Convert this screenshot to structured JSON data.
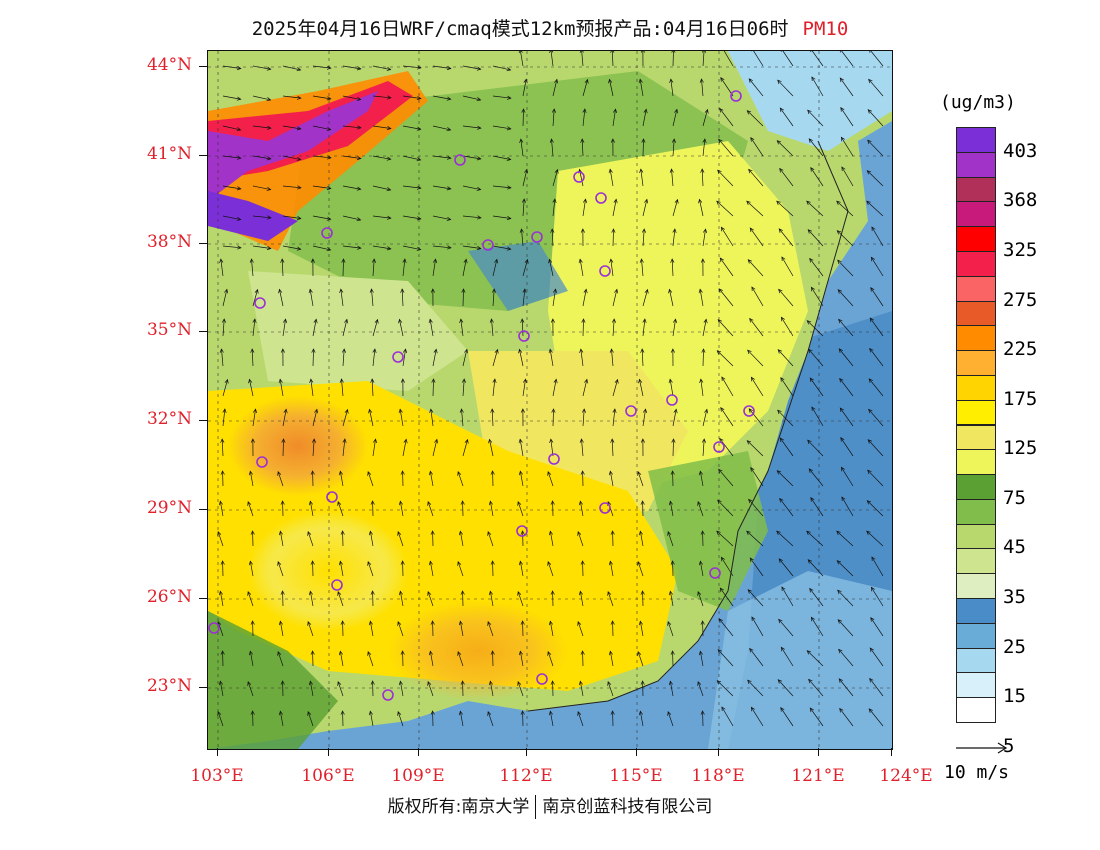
{
  "title": {
    "text": "2025年04月16日WRF/cmaq模式12km预报产品:04月16日06时",
    "pollutant": "PM10"
  },
  "map": {
    "lat_labels": [
      "44°N",
      "41°N",
      "38°N",
      "35°N",
      "32°N",
      "29°N",
      "26°N",
      "23°N"
    ],
    "lon_labels": [
      "103°E",
      "106°E",
      "109°E",
      "112°E",
      "115°E",
      "118°E",
      "121°E",
      "124°E"
    ],
    "label_color": "#e0202a",
    "site_marker_color": "#9b2fd6"
  },
  "colorbar": {
    "unit": "(ug/m3)",
    "labels": [
      "403",
      "368",
      "325",
      "275",
      "225",
      "175",
      "125",
      "75",
      "45",
      "35",
      "25",
      "15",
      "5"
    ],
    "colors": [
      "#7b2fd6",
      "#a233c8",
      "#b0305a",
      "#c81a7a",
      "#ff0000",
      "#f2204a",
      "#fa6464",
      "#e85a28",
      "#ff8c00",
      "#ffb030",
      "#ffd400",
      "#ffee00",
      "#f0e660",
      "#eef55a",
      "#5aa032",
      "#80bd4a",
      "#b8d86e",
      "#cfe48e",
      "#dfeec0",
      "#4a8cc8",
      "#6aacd8",
      "#a6d8f0",
      "#d8f0fa",
      "#ffffff"
    ]
  },
  "wind_reference": {
    "label": "10 m/s"
  },
  "footer": {
    "left": "版权所有:南京大学",
    "right": "南京创蓝科技有限公司"
  }
}
